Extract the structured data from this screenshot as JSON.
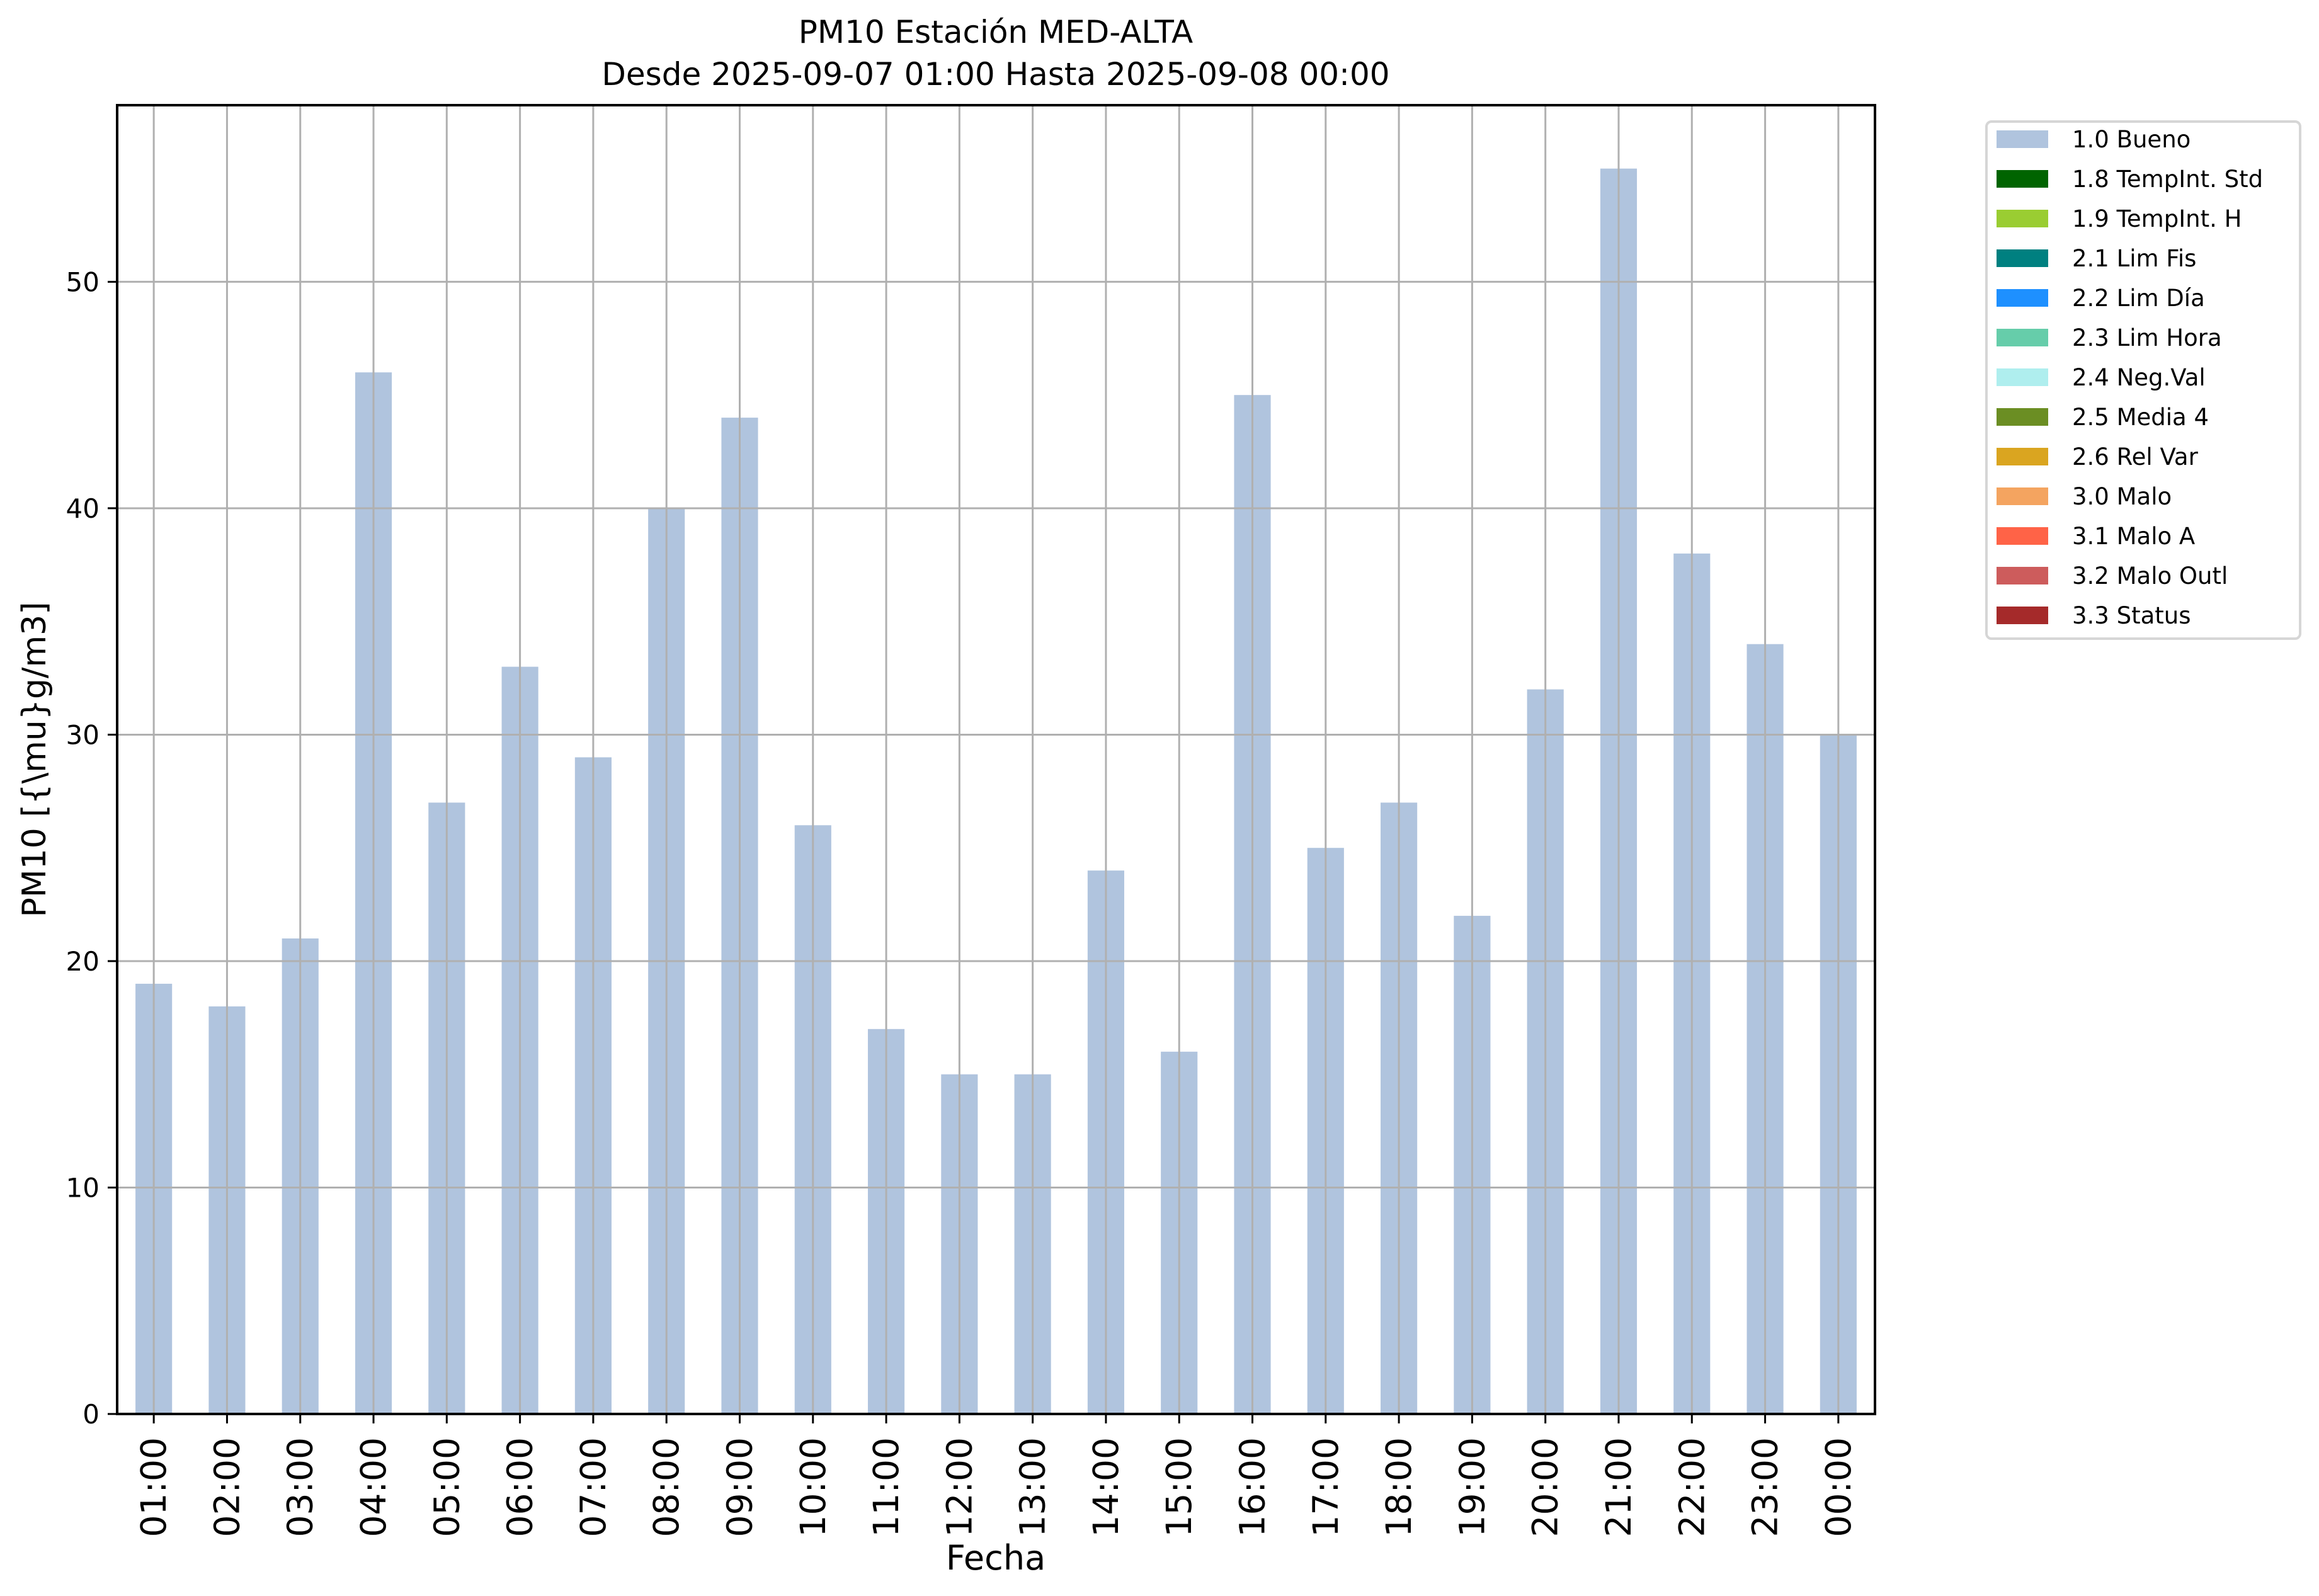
{
  "chart_data": {
    "type": "bar",
    "title": "PM10 Estación MED-ALTA",
    "subtitle": "Desde 2025-09-07 01:00 Hasta 2025-09-08 00:00",
    "xlabel": "Fecha",
    "ylabel": "PM10 [{\\mu}g/m3]",
    "ylim": [
      0,
      57.8
    ],
    "yticks": [
      0,
      10,
      20,
      30,
      40,
      50
    ],
    "grid": true,
    "legend_placement": "outside-top-right",
    "categories": [
      "01:00",
      "02:00",
      "03:00",
      "04:00",
      "05:00",
      "06:00",
      "07:00",
      "08:00",
      "09:00",
      "10:00",
      "11:00",
      "12:00",
      "13:00",
      "14:00",
      "15:00",
      "16:00",
      "17:00",
      "18:00",
      "19:00",
      "20:00",
      "21:00",
      "22:00",
      "23:00",
      "00:00"
    ],
    "series": [
      {
        "name": "1.0 Bueno",
        "color": "#b0c4de",
        "values": [
          19,
          18,
          21,
          46,
          27,
          33,
          29,
          40,
          44,
          26,
          17,
          15,
          15,
          24,
          16,
          45,
          25,
          27,
          22,
          32,
          55,
          38,
          34,
          30
        ]
      }
    ],
    "legend": [
      {
        "label": "1.0 Bueno",
        "color": "#b0c4de"
      },
      {
        "label": "1.8 TempInt. Std",
        "color": "#006400"
      },
      {
        "label": "1.9 TempInt. H",
        "color": "#9acd32"
      },
      {
        "label": "2.1 Lim Fis",
        "color": "#008080"
      },
      {
        "label": "2.2 Lim Día",
        "color": "#1e90ff"
      },
      {
        "label": "2.3 Lim Hora",
        "color": "#66cdaa"
      },
      {
        "label": "2.4 Neg.Val",
        "color": "#afeeee"
      },
      {
        "label": "2.5 Media 4",
        "color": "#6b8e23"
      },
      {
        "label": "2.6 Rel Var",
        "color": "#daa520"
      },
      {
        "label": "3.0 Malo",
        "color": "#f4a460"
      },
      {
        "label": "3.1 Malo A",
        "color": "#ff6347"
      },
      {
        "label": "3.2 Malo Outl",
        "color": "#cd5c5c"
      },
      {
        "label": "3.3 Status",
        "color": "#a52a2a"
      }
    ]
  }
}
